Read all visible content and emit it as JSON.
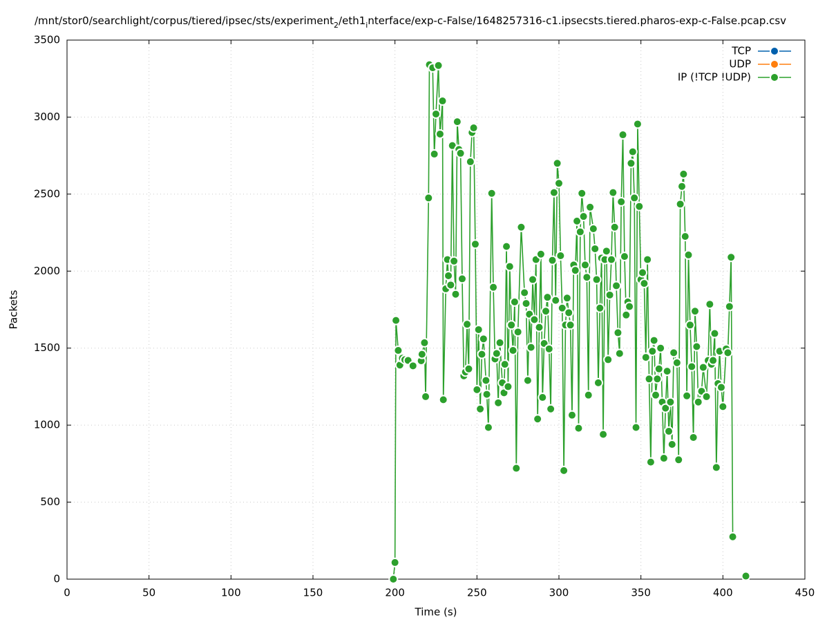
{
  "chart_data": {
    "type": "line",
    "title": [
      "/mnt/stor0/searchlight/corpus/tiered/ipsec/sts/experiment",
      "2",
      "/eth1",
      "i",
      "nterface/exp-c-False/1648257316-c1.ipsecsts.tiered.pharos-exp-c-False.pcap.csv"
    ],
    "xlabel": "Time (s)",
    "ylabel": "Packets",
    "xlim": [
      0,
      450
    ],
    "xticks": [
      0,
      50,
      100,
      150,
      200,
      250,
      300,
      350,
      400,
      450
    ],
    "ylim": [
      0,
      3500
    ],
    "yticks": [
      0,
      500,
      1000,
      1500,
      2000,
      2500,
      3000,
      3500
    ],
    "grid": true,
    "legend": "top-right",
    "series": [
      {
        "name": "TCP",
        "color": "#0060ad",
        "x": [],
        "values": []
      },
      {
        "name": "UDP",
        "color": "#ff7f0e",
        "x": [],
        "values": []
      },
      {
        "name": "IP (!TCP  !UDP)",
        "color": "#2ca02c",
        "x": [
          199,
          200,
          200.6,
          202,
          203,
          204.5,
          206,
          208,
          211,
          216,
          216.5,
          218,
          218.7,
          220.5,
          221,
          223,
          224,
          225,
          226.5,
          227.5,
          229,
          229.5,
          231,
          232,
          232.6,
          234,
          235,
          236,
          237,
          238,
          239,
          240,
          241,
          242,
          243,
          244,
          245,
          246,
          247,
          248,
          249,
          250,
          251,
          252,
          253,
          254,
          255.5,
          256,
          257,
          259,
          260,
          261,
          262,
          263,
          264,
          265.5,
          266.5,
          267,
          268,
          269,
          270,
          271,
          272,
          273,
          274,
          275,
          277,
          279,
          280,
          281,
          282,
          283,
          284,
          285,
          286,
          287,
          288,
          289,
          290,
          291,
          292,
          293,
          294,
          295,
          296,
          297,
          298,
          299,
          300,
          301,
          302,
          303,
          304,
          305,
          306,
          307,
          308,
          309,
          310,
          311,
          312,
          313,
          314,
          315,
          316,
          317,
          318,
          319,
          321,
          322,
          323,
          324,
          325,
          326,
          327,
          328,
          329,
          330,
          331,
          332,
          333,
          334,
          335,
          336,
          337,
          338,
          339,
          340,
          341,
          342,
          343,
          344,
          345,
          346,
          347,
          348,
          349,
          350,
          351,
          352,
          353,
          354,
          355,
          356,
          357,
          358,
          359,
          360,
          361,
          362,
          363,
          364,
          365,
          366,
          367,
          368,
          369,
          370,
          372,
          373,
          374,
          375,
          376,
          377,
          378,
          379,
          380,
          381,
          382,
          383,
          384,
          385,
          387,
          388,
          390,
          391,
          392,
          393,
          394,
          395,
          396,
          397,
          398,
          399,
          400,
          402,
          403,
          404,
          405,
          406,
          407,
          414
        ],
        "values": [
          0,
          108,
          1680,
          1485,
          1390,
          1435,
          1425,
          1420,
          1385,
          1418,
          1460,
          1535,
          1185,
          2475,
          3340,
          3320,
          2760,
          3020,
          3335,
          2890,
          3105,
          1165,
          1885,
          2075,
          1970,
          1910,
          2815,
          2065,
          1850,
          2970,
          2790,
          2765,
          1950,
          1320,
          1345,
          1655,
          1365,
          2710,
          2900,
          2930,
          2175,
          1230,
          1620,
          1105,
          1460,
          1560,
          1290,
          1200,
          985,
          2505,
          1895,
          1430,
          1465,
          1145,
          1535,
          1275,
          1210,
          1395,
          2160,
          1250,
          2030,
          1650,
          1485,
          1800,
          720,
          1605,
          2285,
          1860,
          1790,
          1290,
          1720,
          1505,
          1945,
          1685,
          2075,
          1040,
          1635,
          2110,
          1180,
          1530,
          1740,
          1830,
          1495,
          1105,
          2070,
          2510,
          1810,
          2700,
          2570,
          2100,
          1760,
          705,
          1650,
          1825,
          1730,
          1650,
          1065,
          2040,
          2005,
          2325,
          980,
          2255,
          2505,
          2355,
          2040,
          1960,
          1195,
          2415,
          2275,
          2145,
          1945,
          1275,
          1760,
          2085,
          940,
          2075,
          2130,
          1425,
          1845,
          2075,
          2510,
          2285,
          1905,
          1600,
          1465,
          2450,
          2885,
          2095,
          1715,
          1800,
          1770,
          2700,
          2775,
          2475,
          985,
          2955,
          2420,
          1945,
          1990,
          1920,
          1440,
          2075,
          1300,
          760,
          1480,
          1550,
          1195,
          1300,
          1365,
          1500,
          1150,
          785,
          1110,
          1350,
          960,
          1150,
          875,
          1470,
          1405,
          775,
          2435,
          2550,
          2630,
          2225,
          1190,
          2105,
          1650,
          1380,
          920,
          1740,
          1510,
          1150,
          1220,
          1375,
          1185,
          1420,
          1785,
          1395,
          1420,
          1595,
          725,
          1270,
          1480,
          1245,
          1120,
          1495,
          1470,
          1770,
          2090,
          275,
          null,
          20
        ]
      }
    ]
  }
}
